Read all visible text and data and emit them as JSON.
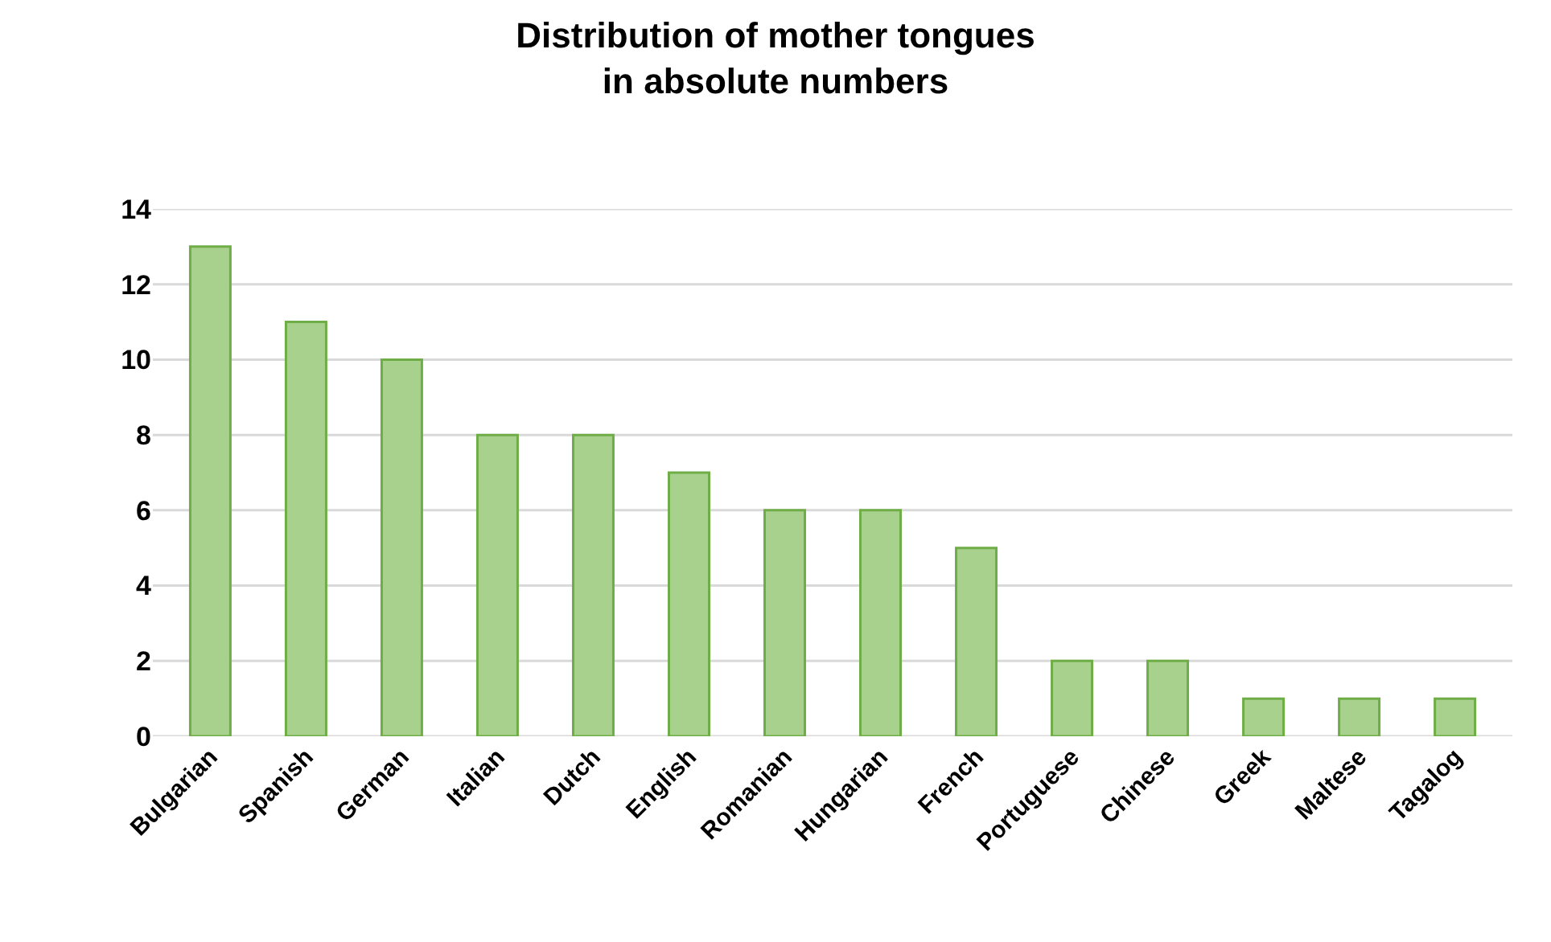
{
  "chart_data": {
    "type": "bar",
    "title": "Distribution of mother tongues\nin absolute numbers",
    "categories": [
      "Bulgarian",
      "Spanish",
      "German",
      "Italian",
      "Dutch",
      "English",
      "Romanian",
      "Hungarian",
      "French",
      "Portuguese",
      "Chinese",
      "Greek",
      "Maltese",
      "Tagalog"
    ],
    "values": [
      13,
      11,
      10,
      8,
      8,
      7,
      6,
      6,
      5,
      2,
      2,
      1,
      1,
      1
    ],
    "color": "#a9d18e",
    "ylim": [
      0,
      14
    ],
    "yticks": [
      0,
      2,
      4,
      6,
      8,
      10,
      12,
      14
    ],
    "grid": "y",
    "legend": false
  }
}
